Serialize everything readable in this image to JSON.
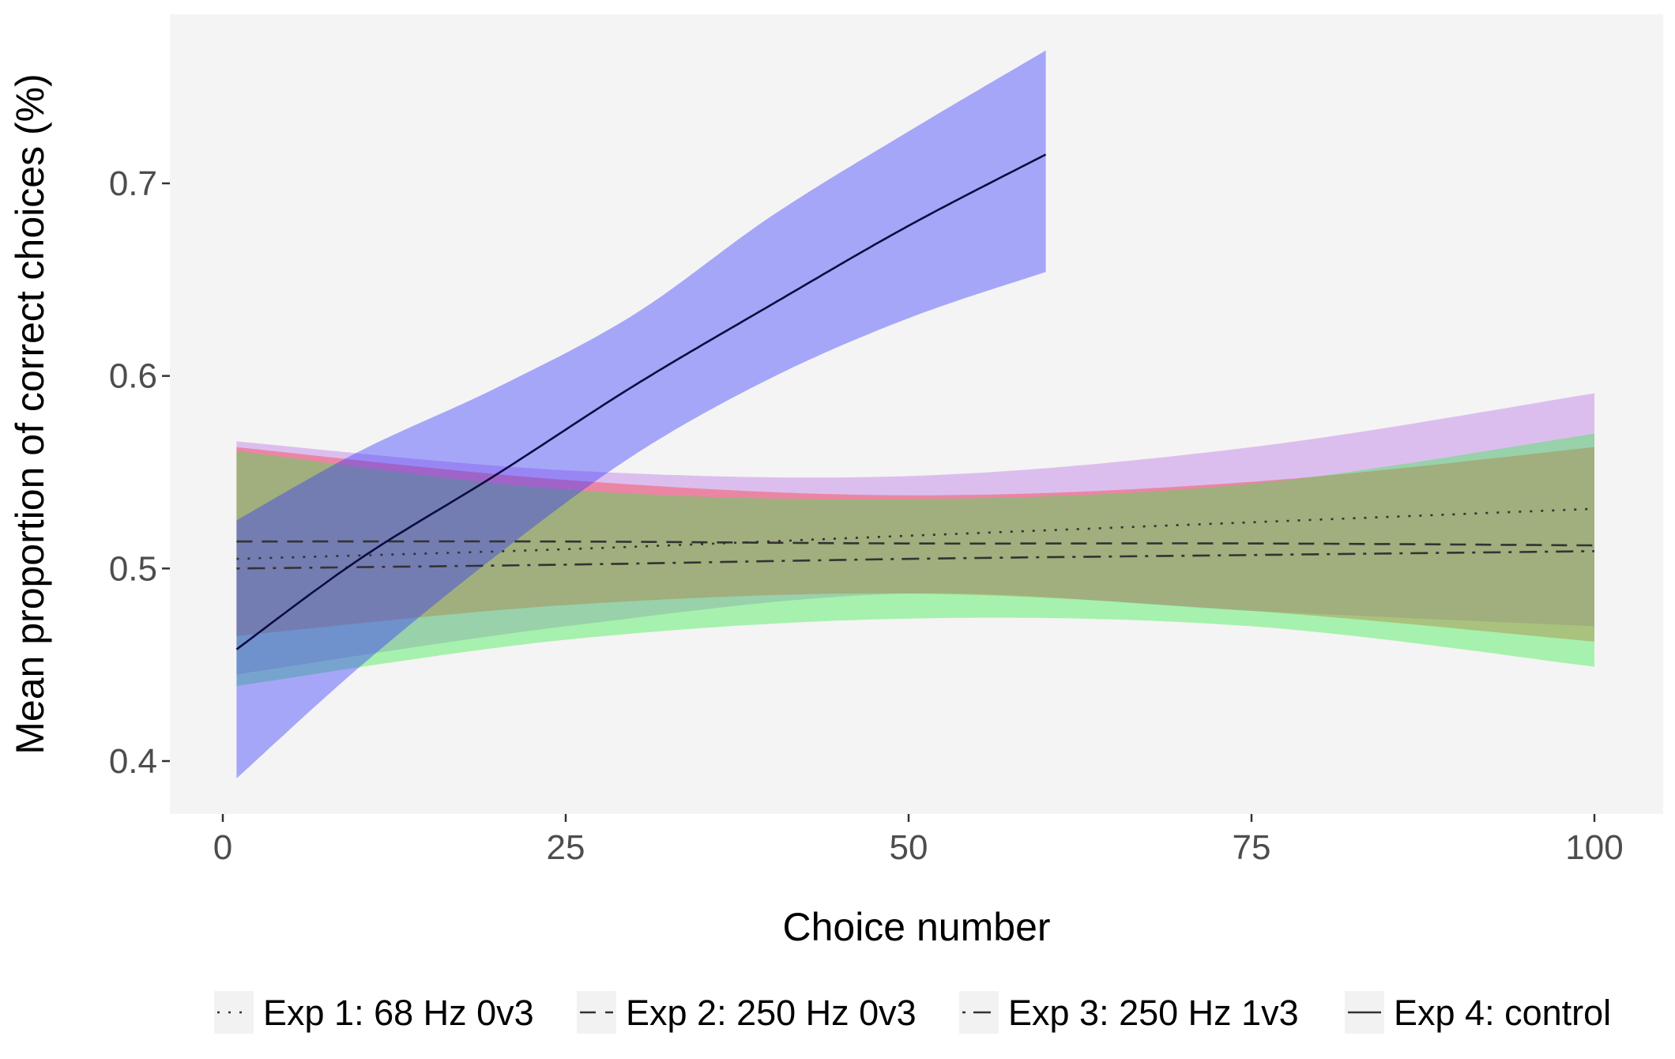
{
  "chart_data": {
    "type": "line",
    "title": "",
    "xlabel": "Choice number",
    "ylabel": "Mean proportion of correct choices (%)",
    "xlim": [
      -15,
      105
    ],
    "ylim": [
      0.375,
      0.79
    ],
    "x_ticks": [
      0,
      25,
      50,
      75,
      100
    ],
    "x_tick_labels": [
      "0",
      "25",
      "50",
      "75",
      "100"
    ],
    "y_ticks": [
      0.4,
      0.5,
      0.6,
      0.7
    ],
    "y_tick_labels": [
      "0.4",
      "0.5",
      "0.6",
      "0.7"
    ],
    "grid": false,
    "panel_background": "#f4f4f4",
    "legend_position": "bottom",
    "series": [
      {
        "name": "Exp 1: 68 Hz 0v3",
        "linetype": "dotted",
        "band_color": "#b96ee6",
        "line_color": "#333333",
        "x": [
          1,
          25,
          50,
          75,
          100
        ],
        "y": [
          0.505,
          0.51,
          0.517,
          0.524,
          0.531
        ],
        "lower": [
          0.445,
          0.47,
          0.487,
          0.478,
          0.47
        ],
        "upper": [
          0.566,
          0.551,
          0.548,
          0.563,
          0.591
        ]
      },
      {
        "name": "Exp 2: 250 Hz 0v3",
        "linetype": "dashed",
        "band_color": "#ff3333",
        "line_color": "#333333",
        "x": [
          1,
          25,
          50,
          75,
          100
        ],
        "y": [
          0.514,
          0.514,
          0.513,
          0.513,
          0.512
        ],
        "lower": [
          0.465,
          0.481,
          0.487,
          0.478,
          0.462
        ],
        "upper": [
          0.563,
          0.546,
          0.538,
          0.545,
          0.563
        ]
      },
      {
        "name": "Exp 3: 250 Hz 1v3",
        "linetype": "dotdash",
        "band_color": "#33ee44",
        "line_color": "#333333",
        "x": [
          1,
          25,
          50,
          75,
          100
        ],
        "y": [
          0.5,
          0.502,
          0.505,
          0.507,
          0.509
        ],
        "lower": [
          0.439,
          0.463,
          0.474,
          0.47,
          0.449
        ],
        "upper": [
          0.561,
          0.541,
          0.536,
          0.544,
          0.57
        ]
      },
      {
        "name": "Exp 4: control",
        "linetype": "solid",
        "band_color": "#3333ff",
        "line_color": "#0c0c40",
        "x": [
          1,
          10,
          20,
          30,
          40,
          50,
          60
        ],
        "y": [
          0.458,
          0.505,
          0.549,
          0.595,
          0.637,
          0.678,
          0.715
        ],
        "lower": [
          0.391,
          0.449,
          0.507,
          0.559,
          0.599,
          0.63,
          0.654
        ],
        "upper": [
          0.525,
          0.561,
          0.594,
          0.632,
          0.683,
          0.727,
          0.769
        ]
      }
    ]
  }
}
